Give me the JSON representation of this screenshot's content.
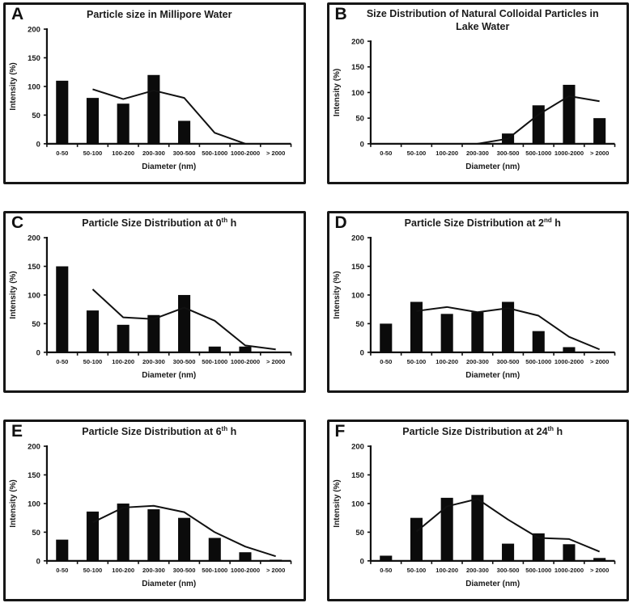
{
  "figure": {
    "ylabel": "Intensity (%)",
    "xlabel": "Diameter (nm)"
  },
  "chart_data": [
    {
      "type": "bar",
      "panel": "A",
      "title_prefix": "Particle size in Millipore Water",
      "title_sup": "",
      "title_suffix": "",
      "categories": [
        "0-50",
        "50-100",
        "100-200",
        "200-300",
        "300-500",
        "500-1000",
        "1000-2000",
        "> 2000"
      ],
      "series": [
        {
          "name": "intensity-bars",
          "type": "bar",
          "values": [
            110,
            80,
            70,
            120,
            40,
            0,
            0,
            0
          ]
        },
        {
          "name": "trend-line",
          "type": "line",
          "values": [
            null,
            95,
            78,
            93,
            80,
            19,
            0,
            null
          ]
        }
      ],
      "xlabel": "Diameter (nm)",
      "ylabel": "Intensity (%)",
      "ylim": [
        0,
        200
      ],
      "yticks": [
        0,
        50,
        100,
        150,
        200
      ],
      "grid": false,
      "legend": "none"
    },
    {
      "type": "bar",
      "panel": "B",
      "title_prefix": "Size Distribution of Natural Colloidal Particles in Lake Water",
      "title_sup": "",
      "title_suffix": "",
      "categories": [
        "0-50",
        "50-100",
        "100-200",
        "200-300",
        "300-500",
        "500-1000",
        "1000-2000",
        "> 2000"
      ],
      "series": [
        {
          "name": "intensity-bars",
          "type": "bar",
          "values": [
            0,
            0,
            0,
            0,
            20,
            75,
            115,
            50
          ]
        },
        {
          "name": "trend-line",
          "type": "line",
          "values": [
            null,
            null,
            null,
            0,
            10,
            57,
            93,
            83
          ]
        }
      ],
      "xlabel": "Diameter (nm)",
      "ylabel": "Intensity (%)",
      "ylim": [
        0,
        200
      ],
      "yticks": [
        0,
        50,
        100,
        150,
        200
      ],
      "grid": false,
      "legend": "none"
    },
    {
      "type": "bar",
      "panel": "C",
      "title_prefix": "Particle Size Distribution at 0",
      "title_sup": "th",
      "title_suffix": " h",
      "categories": [
        "0-50",
        "50-100",
        "100-200",
        "200-300",
        "300-500",
        "500-1000",
        "1000-2000",
        "> 2000"
      ],
      "series": [
        {
          "name": "intensity-bars",
          "type": "bar",
          "values": [
            150,
            73,
            48,
            65,
            100,
            10,
            10,
            0
          ]
        },
        {
          "name": "trend-line",
          "type": "line",
          "values": [
            null,
            110,
            61,
            58,
            78,
            55,
            12,
            5
          ]
        }
      ],
      "xlabel": "Diameter (nm)",
      "ylabel": "Intensity (%)",
      "ylim": [
        0,
        200
      ],
      "yticks": [
        0,
        50,
        100,
        150,
        200
      ],
      "grid": false,
      "legend": "none"
    },
    {
      "type": "bar",
      "panel": "D",
      "title_prefix": "Particle Size Distribution at 2",
      "title_sup": "nd",
      "title_suffix": " h",
      "categories": [
        "0-50",
        "50-100",
        "100-200",
        "200-300",
        "300-500",
        "500-1000",
        "1000-2000",
        "> 2000"
      ],
      "series": [
        {
          "name": "intensity-bars",
          "type": "bar",
          "values": [
            50,
            88,
            67,
            70,
            88,
            37,
            9,
            0
          ]
        },
        {
          "name": "trend-line",
          "type": "line",
          "values": [
            null,
            72,
            79,
            70,
            77,
            64,
            27,
            5
          ]
        }
      ],
      "xlabel": "Diameter (nm)",
      "ylabel": "Intensity (%)",
      "ylim": [
        0,
        200
      ],
      "yticks": [
        0,
        50,
        100,
        150,
        200
      ],
      "grid": false,
      "legend": "none"
    },
    {
      "type": "bar",
      "panel": "E",
      "title_prefix": "Particle Size Distribution at 6",
      "title_sup": "th",
      "title_suffix": " h",
      "categories": [
        "0-50",
        "50-100",
        "100-200",
        "200-300",
        "300-500",
        "500-1000",
        "1000-2000",
        "> 2000"
      ],
      "series": [
        {
          "name": "intensity-bars",
          "type": "bar",
          "values": [
            37,
            86,
            100,
            90,
            75,
            40,
            15,
            2
          ]
        },
        {
          "name": "trend-line",
          "type": "line",
          "values": [
            null,
            67,
            93,
            96,
            85,
            50,
            25,
            8
          ]
        }
      ],
      "xlabel": "Diameter (nm)",
      "ylabel": "Intensity (%)",
      "ylim": [
        0,
        200
      ],
      "yticks": [
        0,
        50,
        100,
        150,
        200
      ],
      "grid": false,
      "legend": "none"
    },
    {
      "type": "bar",
      "panel": "F",
      "title_prefix": "Particle Size Distribution at 24",
      "title_sup": "th",
      "title_suffix": " h",
      "categories": [
        "0-50",
        "50-100",
        "100-200",
        "200-300",
        "300-500",
        "500-1000",
        "1000-2000",
        "> 2000"
      ],
      "series": [
        {
          "name": "intensity-bars",
          "type": "bar",
          "values": [
            9,
            75,
            110,
            115,
            30,
            48,
            29,
            5
          ]
        },
        {
          "name": "trend-line",
          "type": "line",
          "values": [
            null,
            51,
            95,
            108,
            72,
            40,
            38,
            16
          ]
        }
      ],
      "xlabel": "Diameter (nm)",
      "ylabel": "Intensity (%)",
      "ylim": [
        0,
        200
      ],
      "yticks": [
        0,
        50,
        100,
        150,
        200
      ],
      "grid": false,
      "legend": "none"
    }
  ],
  "colors": {
    "bar": "#0b0b0b",
    "line": "#111111",
    "axis": "#111111",
    "text": "#1a1a1a",
    "panel_border": "#161616",
    "background": "#ffffff"
  }
}
